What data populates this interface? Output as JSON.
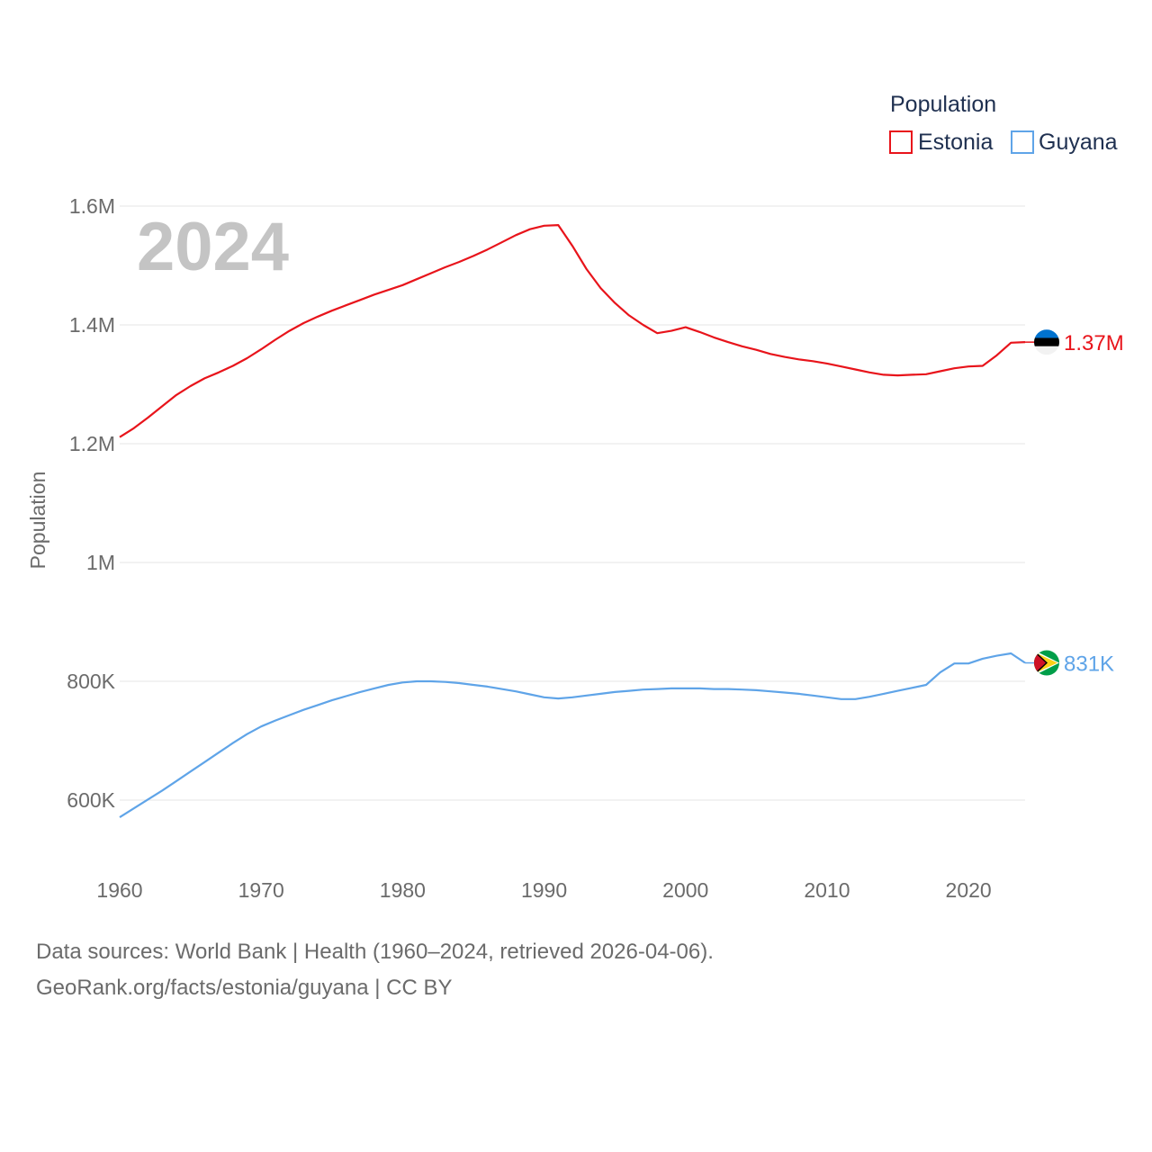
{
  "chart_data": {
    "type": "line",
    "title": "Population",
    "ylabel": "Population",
    "xlabel": "",
    "current_year_label": "2024",
    "xlim": [
      1960,
      2024
    ],
    "ylim": [
      500000,
      1650000
    ],
    "x_ticks": [
      {
        "value": 1960,
        "label": "1960"
      },
      {
        "value": 1970,
        "label": "1970"
      },
      {
        "value": 1980,
        "label": "1980"
      },
      {
        "value": 1990,
        "label": "1990"
      },
      {
        "value": 2000,
        "label": "2000"
      },
      {
        "value": 2010,
        "label": "2010"
      },
      {
        "value": 2020,
        "label": "2020"
      }
    ],
    "y_ticks": [
      {
        "value": 600000,
        "label": "600K"
      },
      {
        "value": 800000,
        "label": "800K"
      },
      {
        "value": 1000000,
        "label": "1M"
      },
      {
        "value": 1200000,
        "label": "1.2M"
      },
      {
        "value": 1400000,
        "label": "1.4M"
      },
      {
        "value": 1600000,
        "label": "1.6M"
      }
    ],
    "legend": {
      "title": "Population",
      "position": "top-right"
    },
    "series": [
      {
        "name": "Estonia",
        "color": "#e8141b",
        "end_label": "1.37M",
        "flag_icon": "estonia-flag-icon",
        "x": [
          1960,
          1961,
          1962,
          1963,
          1964,
          1965,
          1966,
          1967,
          1968,
          1969,
          1970,
          1971,
          1972,
          1973,
          1974,
          1975,
          1976,
          1977,
          1978,
          1979,
          1980,
          1981,
          1982,
          1983,
          1984,
          1985,
          1986,
          1987,
          1988,
          1989,
          1990,
          1991,
          1992,
          1993,
          1994,
          1995,
          1996,
          1997,
          1998,
          1999,
          2000,
          2001,
          2002,
          2003,
          2004,
          2005,
          2006,
          2007,
          2008,
          2009,
          2010,
          2011,
          2012,
          2013,
          2014,
          2015,
          2016,
          2017,
          2018,
          2019,
          2020,
          2021,
          2022,
          2023,
          2024
        ],
        "values": [
          1211000,
          1226000,
          1244000,
          1263000,
          1282000,
          1297000,
          1310000,
          1320000,
          1331000,
          1344000,
          1359000,
          1375000,
          1390000,
          1403000,
          1414000,
          1424000,
          1433000,
          1442000,
          1451000,
          1459000,
          1467000,
          1477000,
          1487000,
          1497000,
          1506000,
          1516000,
          1527000,
          1539000,
          1551000,
          1561000,
          1567000,
          1568000,
          1533000,
          1494000,
          1462000,
          1437000,
          1416000,
          1400000,
          1386000,
          1390000,
          1396000,
          1388000,
          1379000,
          1371000,
          1364000,
          1358000,
          1351000,
          1346000,
          1342000,
          1339000,
          1335000,
          1330000,
          1325000,
          1320000,
          1316000,
          1315000,
          1316000,
          1317000,
          1322000,
          1327000,
          1330000,
          1331000,
          1349000,
          1370000,
          1371000
        ]
      },
      {
        "name": "Guyana",
        "color": "#5fa4e8",
        "end_label": "831K",
        "flag_icon": "guyana-flag-icon",
        "x": [
          1960,
          1961,
          1962,
          1963,
          1964,
          1965,
          1966,
          1967,
          1968,
          1969,
          1970,
          1971,
          1972,
          1973,
          1974,
          1975,
          1976,
          1977,
          1978,
          1979,
          1980,
          1981,
          1982,
          1983,
          1984,
          1985,
          1986,
          1987,
          1988,
          1989,
          1990,
          1991,
          1992,
          1993,
          1994,
          1995,
          1996,
          1997,
          1998,
          1999,
          2000,
          2001,
          2002,
          2003,
          2004,
          2005,
          2006,
          2007,
          2008,
          2009,
          2010,
          2011,
          2012,
          2013,
          2014,
          2015,
          2016,
          2017,
          2018,
          2019,
          2020,
          2021,
          2022,
          2023,
          2024
        ],
        "values": [
          571000,
          586000,
          601000,
          616000,
          632000,
          648000,
          664000,
          680000,
          696000,
          711000,
          724000,
          734000,
          743000,
          752000,
          760000,
          768000,
          775000,
          782000,
          788000,
          794000,
          798000,
          800000,
          800000,
          799000,
          797000,
          794000,
          791000,
          787000,
          783000,
          778000,
          773000,
          771000,
          773000,
          776000,
          779000,
          782000,
          784000,
          786000,
          787000,
          788000,
          788000,
          788000,
          787000,
          787000,
          786000,
          785000,
          783000,
          781000,
          779000,
          776000,
          773000,
          770000,
          770000,
          774000,
          779000,
          784000,
          789000,
          794000,
          815000,
          830000,
          830000,
          838000,
          843000,
          847000,
          831000
        ]
      }
    ],
    "sources": {
      "line1": "Data sources: World Bank | Health (1960–2024, retrieved 2026-04-06).",
      "line2": "GeoRank.org/facts/estonia/guyana | CC BY"
    }
  }
}
